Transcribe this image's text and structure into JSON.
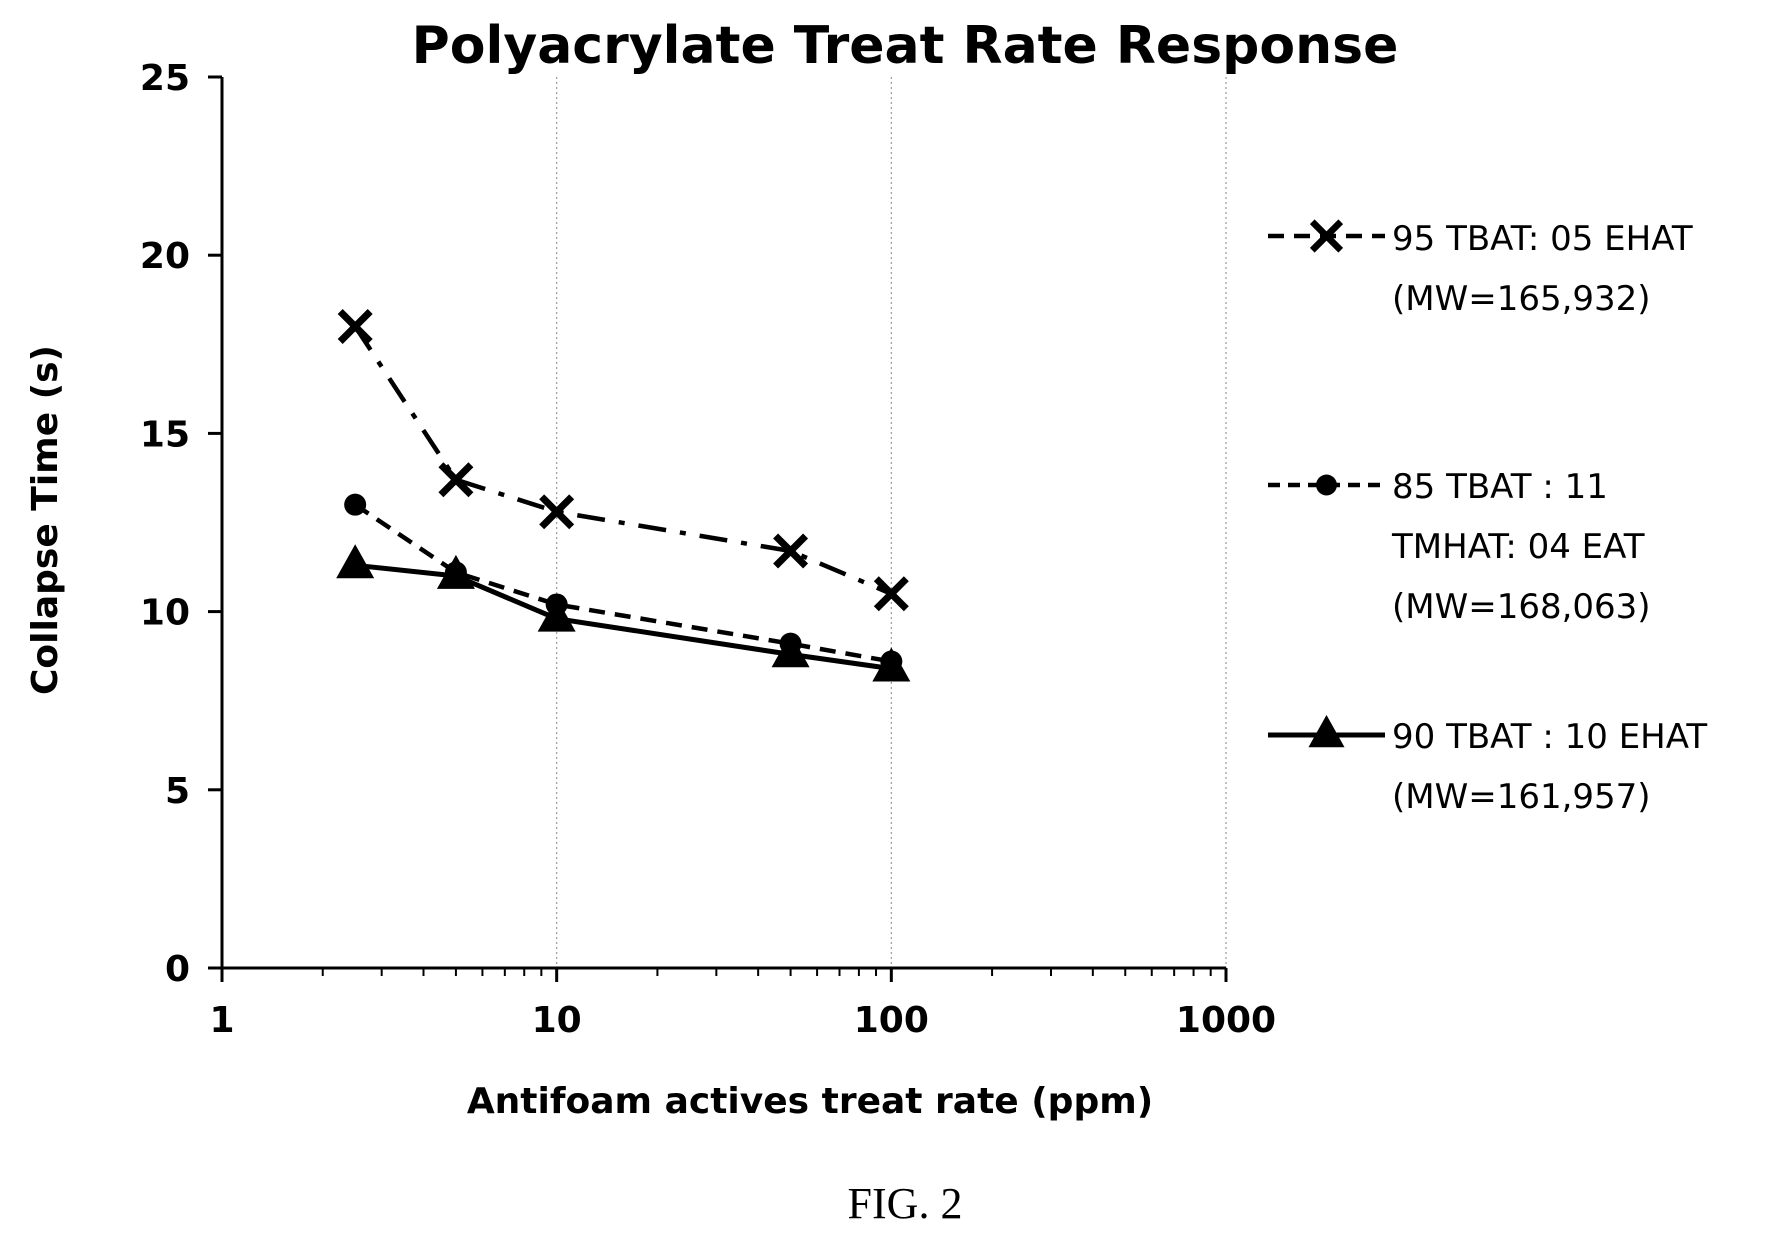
{
  "figure": {
    "caption": "FIG. 2"
  },
  "chart_data": {
    "type": "line",
    "title": "Polyacrylate Treat Rate Response",
    "xlabel": "Antifoam actives treat rate  (ppm)",
    "ylabel": "Collapse Time (s)",
    "x_scale": "log",
    "xlim": [
      1,
      1000
    ],
    "ylim": [
      0,
      25
    ],
    "x_ticks": [
      1,
      10,
      100,
      1000
    ],
    "x_tick_labels": [
      "1",
      "10",
      "100",
      "1000"
    ],
    "y_ticks": [
      0,
      5,
      10,
      15,
      20,
      25
    ],
    "y_tick_labels": [
      "0",
      "5",
      "10",
      "15",
      "20",
      "25"
    ],
    "grid": {
      "x_major": true,
      "y": false
    },
    "legend_position": "right",
    "series": [
      {
        "name_lines": [
          "95 TBAT: 05 EHAT",
          "(MW=165,932)"
        ],
        "marker": "x",
        "line_style": "dash-dot",
        "x": [
          2.5,
          5,
          10,
          50,
          100
        ],
        "y": [
          18.0,
          13.7,
          12.8,
          11.7,
          10.5
        ]
      },
      {
        "name_lines": [
          "85 TBAT : 11",
          "TMHAT: 04 EAT",
          "(MW=168,063)"
        ],
        "marker": "circle",
        "line_style": "dashed",
        "x": [
          2.5,
          5,
          10,
          50,
          100
        ],
        "y": [
          13.0,
          11.1,
          10.2,
          9.1,
          8.6
        ]
      },
      {
        "name_lines": [
          "90 TBAT : 10 EHAT",
          "(MW=161,957)"
        ],
        "marker": "triangle",
        "line_style": "solid",
        "x": [
          2.5,
          5,
          10,
          50,
          100
        ],
        "y": [
          11.3,
          11.0,
          9.8,
          8.8,
          8.4
        ]
      }
    ]
  }
}
